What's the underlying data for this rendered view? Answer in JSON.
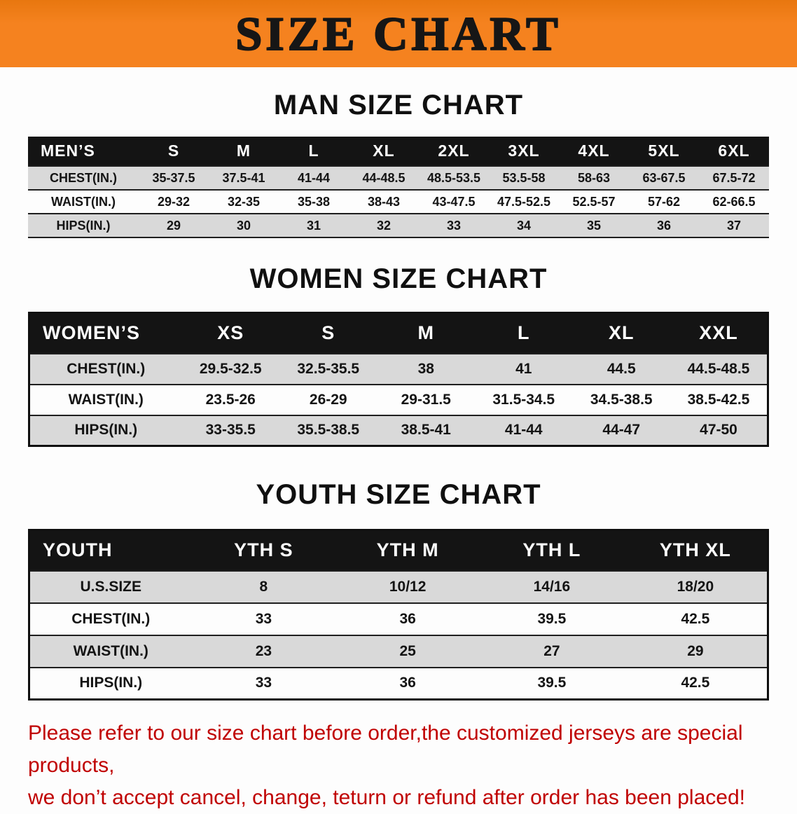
{
  "banner": {
    "title": "SIZE CHART",
    "bg_color": "#F5821F",
    "text_color": "#161616"
  },
  "sections": {
    "men": {
      "heading": "MAN SIZE CHART",
      "table": {
        "header": [
          "MEN’S",
          "S",
          "M",
          "L",
          "XL",
          "2XL",
          "3XL",
          "4XL",
          "5XL",
          "6XL"
        ],
        "rows": [
          [
            "CHEST(IN.)",
            "35-37.5",
            "37.5-41",
            "41-44",
            "44-48.5",
            "48.5-53.5",
            "53.5-58",
            "58-63",
            "63-67.5",
            "67.5-72"
          ],
          [
            "WAIST(IN.)",
            "29-32",
            "32-35",
            "35-38",
            "38-43",
            "43-47.5",
            "47.5-52.5",
            "52.5-57",
            "57-62",
            "62-66.5"
          ],
          [
            "HIPS(IN.)",
            "29",
            "30",
            "31",
            "32",
            "33",
            "34",
            "35",
            "36",
            "37"
          ]
        ]
      }
    },
    "women": {
      "heading": "WOMEN SIZE CHART",
      "table": {
        "header": [
          "WOMEN’S",
          "XS",
          "S",
          "M",
          "L",
          "XL",
          "XXL"
        ],
        "rows": [
          [
            "CHEST(IN.)",
            "29.5-32.5",
            "32.5-35.5",
            "38",
            "41",
            "44.5",
            "44.5-48.5"
          ],
          [
            "WAIST(IN.)",
            "23.5-26",
            "26-29",
            "29-31.5",
            "31.5-34.5",
            "34.5-38.5",
            "38.5-42.5"
          ],
          [
            "HIPS(IN.)",
            "33-35.5",
            "35.5-38.5",
            "38.5-41",
            "41-44",
            "44-47",
            "47-50"
          ]
        ]
      }
    },
    "youth": {
      "heading": "YOUTH SIZE CHART",
      "table": {
        "header": [
          "YOUTH",
          "YTH S",
          "YTH M",
          "YTH L",
          "YTH XL"
        ],
        "rows": [
          [
            "U.S.SIZE",
            "8",
            "10/12",
            "14/16",
            "18/20"
          ],
          [
            "CHEST(IN.)",
            "33",
            "36",
            "39.5",
            "42.5"
          ],
          [
            "WAIST(IN.)",
            "23",
            "25",
            "27",
            "29"
          ],
          [
            "HIPS(IN.)",
            "33",
            "36",
            "39.5",
            "42.5"
          ]
        ]
      }
    }
  },
  "notice": {
    "line1": "Please refer to our size chart before order,the customized jerseys are special products,",
    "line2": "we don’t accept cancel, change, teturn or refund after order has been placed!",
    "text_color": "#C00000"
  },
  "colors": {
    "table_header_bg": "#141414",
    "row_stripe": "#D9D9D9"
  }
}
